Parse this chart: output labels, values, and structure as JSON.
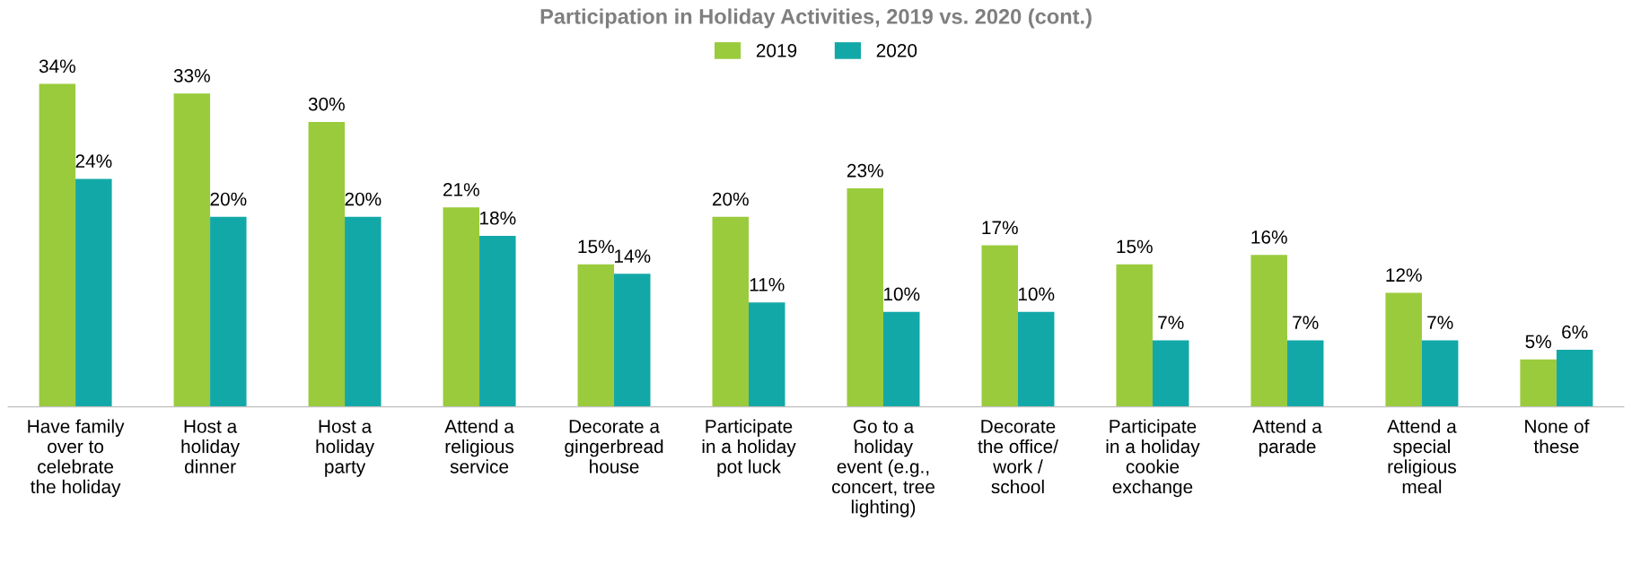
{
  "chart_data": {
    "type": "bar",
    "title": "Participation in Holiday Activities, 2019 vs. 2020 (cont.)",
    "categories": [
      "Have family\nover to\ncelebrate\nthe holiday",
      "Host a\nholiday\ndinner",
      "Host a\nholiday\nparty",
      "Attend a\nreligious\nservice",
      "Decorate a\ngingerbread\nhouse",
      "Participate\nin a holiday\npot luck",
      "Go to a\nholiday\nevent (e.g.,\nconcert, tree\nlighting)",
      "Decorate\nthe office/\nwork /\nschool",
      "Participate\nin a holiday\ncookie\nexchange",
      "Attend a\nparade",
      "Attend a\nspecial\nreligious\nmeal",
      "None of\nthese"
    ],
    "series": [
      {
        "name": "2019",
        "color": "#9acb3c",
        "values": [
          34,
          33,
          30,
          21,
          15,
          20,
          23,
          17,
          15,
          16,
          12,
          5
        ],
        "value_labels": [
          "34%",
          "33%",
          "30%",
          "21%",
          "15%",
          "20%",
          "23%",
          "17%",
          "15%",
          "16%",
          "12%",
          "5%"
        ]
      },
      {
        "name": "2020",
        "color": "#13a8a8",
        "values": [
          24,
          20,
          20,
          18,
          14,
          11,
          10,
          10,
          7,
          7,
          7,
          6
        ],
        "value_labels": [
          "24%",
          "20%",
          "20%",
          "18%",
          "14%",
          "11%",
          "10%",
          "10%",
          "7%",
          "7%",
          "7%",
          "6%"
        ]
      }
    ],
    "legend": "top",
    "grid": false
  }
}
